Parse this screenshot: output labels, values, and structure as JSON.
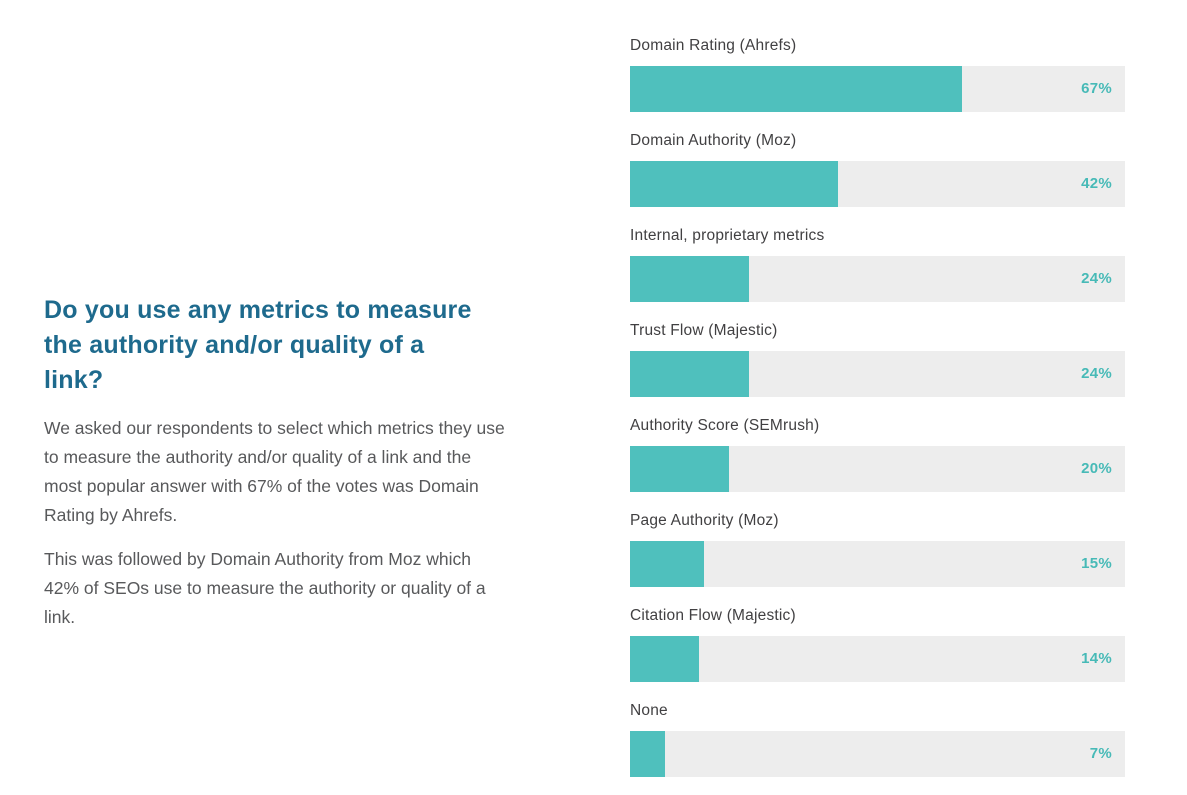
{
  "colors": {
    "page_background": "#ffffff",
    "heading_text": "#1e6a8d",
    "body_text": "#58595b",
    "category_label": "#414042",
    "bar_fill": "#4fc0bd",
    "bar_track": "#ededed",
    "value_label": "#47bab7"
  },
  "left_panel": {
    "heading": "Do you use any metrics to measure\nthe authority and/or quality of a\nlink?",
    "paragraphs": [
      "We asked our respondents to select which metrics they use\nto measure the authority and/or quality of a link and the\nmost popular answer with 67% of the votes was Domain\nRating by Ahrefs.",
      "This was followed by Domain Authority from Moz which\n42% of SEOs use to measure the authority or quality of a\nlink."
    ]
  },
  "chart_data": {
    "type": "bar",
    "orientation": "horizontal",
    "title": "",
    "xlabel": "",
    "ylabel": "",
    "xlim": [
      0,
      100
    ],
    "grid": false,
    "legend": false,
    "value_label_position": "inside-end",
    "categories": [
      "Domain Rating (Ahrefs)",
      "Domain Authority (Moz)",
      "Internal, proprietary metrics",
      "Trust Flow (Majestic)",
      "Authority Score (SEMrush)",
      "Page Authority (Moz)",
      "Citation Flow (Majestic)",
      "None"
    ],
    "values": [
      67,
      42,
      24,
      24,
      20,
      15,
      14,
      7
    ],
    "value_labels": [
      "67%",
      "42%",
      "24%",
      "24%",
      "20%",
      "15%",
      "14%",
      "7%"
    ]
  }
}
